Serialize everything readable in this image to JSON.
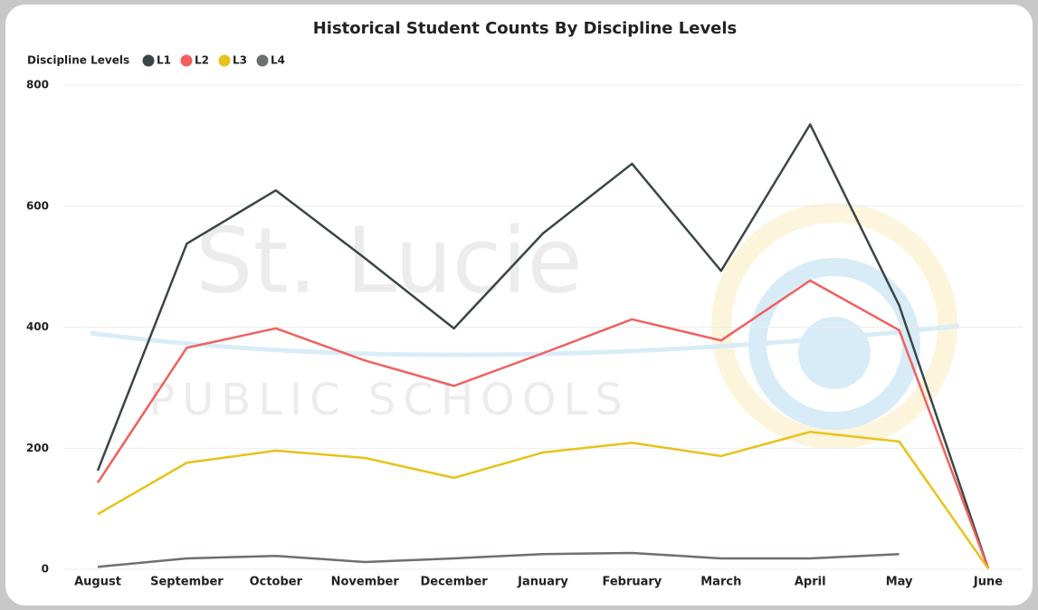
{
  "chart_data": {
    "type": "line",
    "title": "Historical Student Counts By Discipline Levels",
    "legend_title": "Discipline Levels",
    "legend_position": "top-left",
    "categories": [
      "August",
      "September",
      "October",
      "November",
      "December",
      "January",
      "February",
      "March",
      "April",
      "May",
      "June"
    ],
    "series": [
      {
        "name": "L1",
        "color": "#3b4646",
        "values": [
          163,
          538,
          626,
          514,
          398,
          555,
          670,
          493,
          735,
          436,
          1
        ]
      },
      {
        "name": "L2",
        "color": "#f0605f",
        "values": [
          143,
          366,
          398,
          345,
          303,
          357,
          413,
          378,
          477,
          395,
          1
        ]
      },
      {
        "name": "L3",
        "color": "#e8c21a",
        "values": [
          91,
          176,
          196,
          184,
          151,
          193,
          209,
          187,
          227,
          211,
          1
        ]
      },
      {
        "name": "L4",
        "color": "#6b7070",
        "values": [
          4,
          18,
          22,
          12,
          18,
          25,
          27,
          18,
          18,
          25,
          null
        ]
      }
    ],
    "ylim": [
      0,
      800
    ],
    "yticks": [
      0,
      200,
      400,
      600,
      800
    ],
    "grid": true
  },
  "watermark": {
    "line1": "St. Lucie",
    "line2": "PUBLIC SCHOOLS"
  }
}
